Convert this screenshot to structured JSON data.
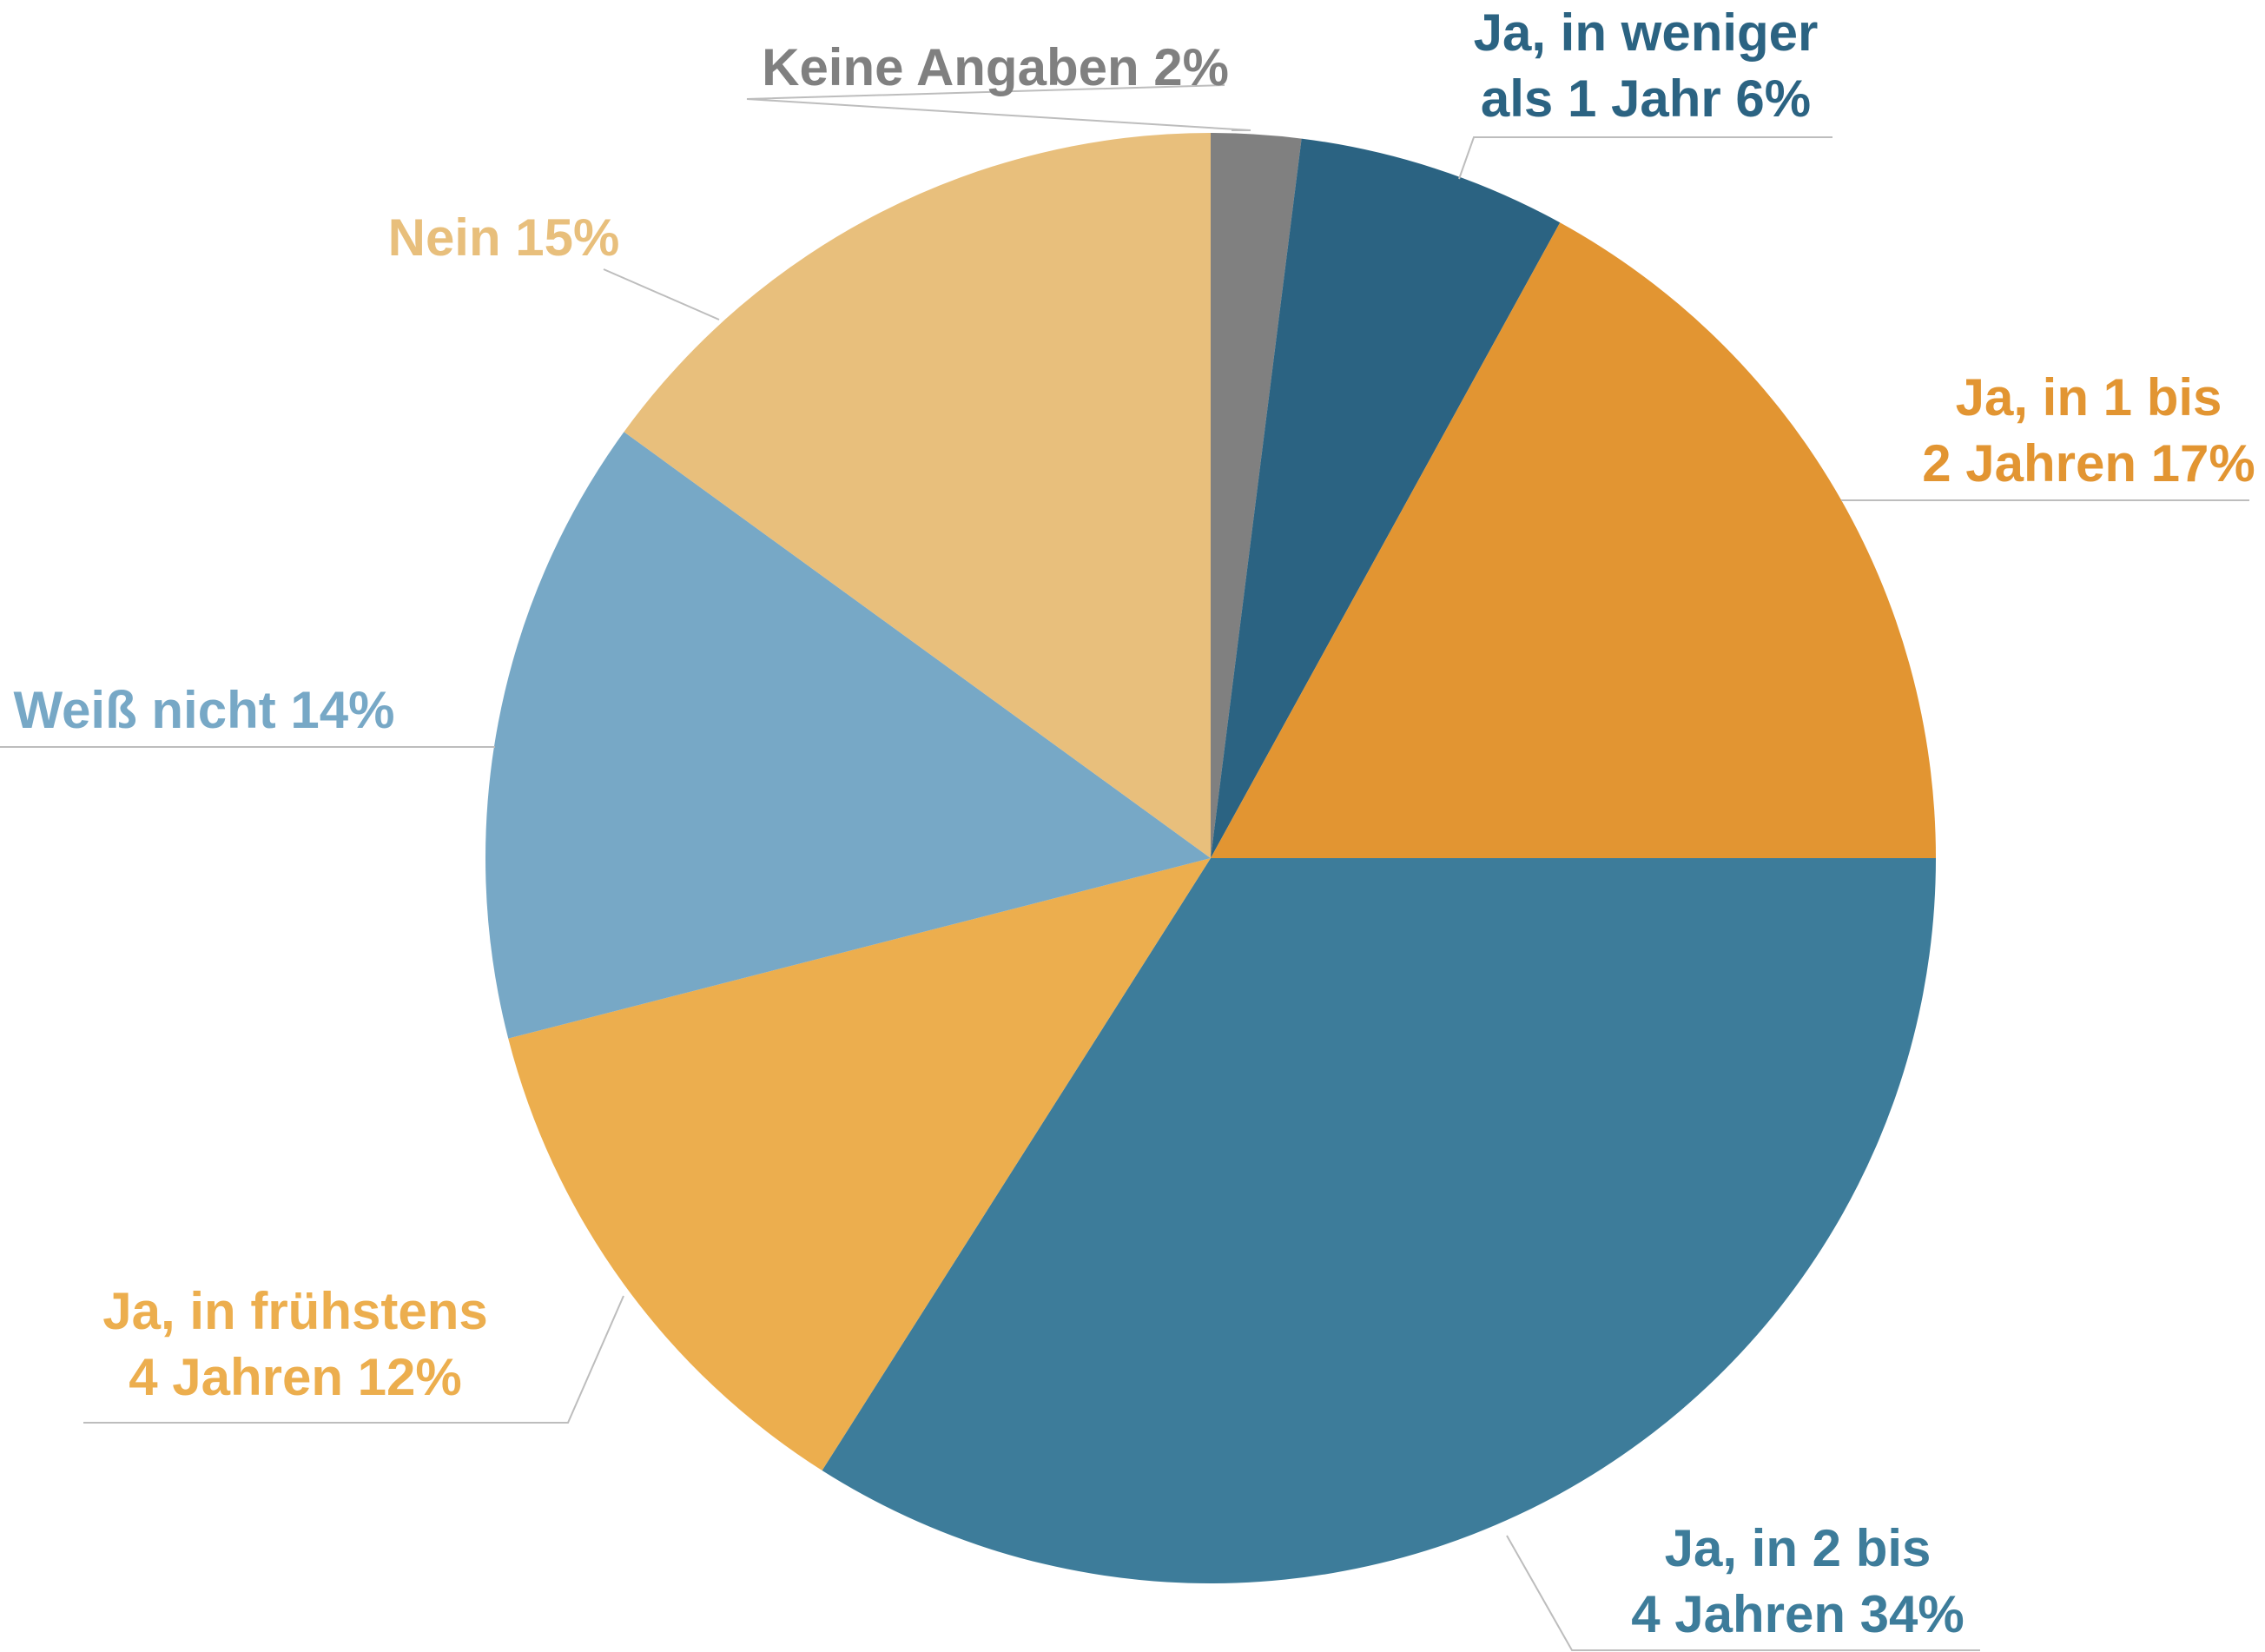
{
  "chart_data": {
    "type": "pie",
    "title": "",
    "start_angle_deg": 0,
    "direction": "clockwise",
    "slices": [
      {
        "label_lines": [
          "Keine Angaben 2%"
        ],
        "value": 2,
        "color": "#808080"
      },
      {
        "label_lines": [
          "Ja, in weniger",
          "als 1 Jahr 6%"
        ],
        "value": 6,
        "color": "#2b6382"
      },
      {
        "label_lines": [
          "Ja, in 1 bis",
          "2 Jahren 17%"
        ],
        "value": 17,
        "color": "#e29532"
      },
      {
        "label_lines": [
          "Ja, in 2 bis",
          "4 Jahren 34%"
        ],
        "value": 34,
        "color": "#3d7c9a"
      },
      {
        "label_lines": [
          "Ja, in frühstens",
          "4 Jahren 12%"
        ],
        "value": 12,
        "color": "#ecae4e"
      },
      {
        "label_lines": [
          "Weiß nicht 14%"
        ],
        "value": 14,
        "color": "#77a8c6"
      },
      {
        "label_lines": [
          "Nein 15%"
        ],
        "value": 15,
        "color": "#e8bf7c"
      }
    ]
  }
}
